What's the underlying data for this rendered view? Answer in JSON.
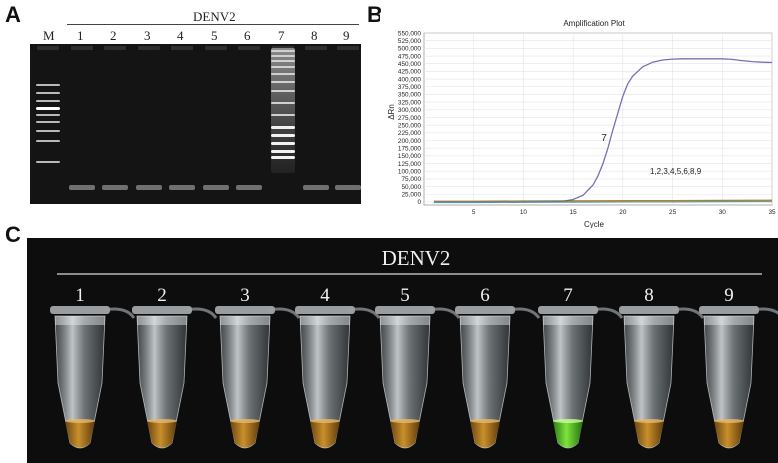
{
  "panel_a": {
    "label": "A",
    "header": "DENV2",
    "lanes": [
      "M",
      "1",
      "2",
      "3",
      "4",
      "5",
      "6",
      "7",
      "8",
      "9"
    ]
  },
  "panel_b": {
    "label": "B",
    "title": "Amplification Plot",
    "xlabel": "Cycle",
    "ylabel": "ΔRn",
    "positive_label": "7",
    "negative_label": "1,2,3,4,5,6,8,9"
  },
  "panel_c": {
    "label": "C",
    "header": "DENV2",
    "tubes": [
      "1",
      "2",
      "3",
      "4",
      "5",
      "6",
      "7",
      "8",
      "9"
    ],
    "colors": {
      "negative": "#b07a1e",
      "positive": "#4fc21e"
    }
  },
  "chart_data": {
    "type": "line",
    "title": "Amplification Plot",
    "xlabel": "Cycle",
    "ylabel": "ΔRn",
    "xlim": [
      0,
      35
    ],
    "ylim": [
      -10000,
      550000
    ],
    "x_ticks": [
      5,
      10,
      15,
      20,
      25,
      30,
      35
    ],
    "y_ticks": [
      0,
      25000,
      50000,
      75000,
      100000,
      125000,
      150000,
      175000,
      200000,
      225000,
      250000,
      275000,
      300000,
      325000,
      350000,
      375000,
      400000,
      425000,
      450000,
      475000,
      500000,
      525000,
      550000
    ],
    "y_tick_labels": [
      "0",
      "25,000",
      "50,000",
      "75,000",
      "100,000",
      "125,000",
      "150,000",
      "175,000",
      "200,000",
      "225,000",
      "250,000",
      "275,000",
      "300,000",
      "325,000",
      "350,000",
      "375,000",
      "400,000",
      "425,000",
      "450,000",
      "475,000",
      "500,000",
      "525,000",
      "550,000"
    ],
    "grid": true,
    "series": [
      {
        "name": "7",
        "color": "#7b6fb3",
        "x": [
          1,
          5,
          10,
          14,
          15,
          16,
          17,
          17.5,
          18,
          18.5,
          19,
          19.5,
          20,
          20.5,
          21,
          22,
          23,
          24,
          25,
          26,
          28,
          30,
          31,
          32,
          33,
          34,
          35
        ],
        "y": [
          0,
          0,
          0,
          2000,
          8000,
          22000,
          55000,
          85000,
          125000,
          175000,
          235000,
          290000,
          345000,
          385000,
          410000,
          440000,
          455000,
          462000,
          465000,
          466000,
          466000,
          466000,
          464000,
          460000,
          457000,
          455000,
          454000
        ]
      },
      {
        "name": "1,2,3,4,5,6,8,9",
        "color": "#e0a020",
        "x": [
          1,
          5,
          10,
          15,
          20,
          25,
          30,
          35
        ],
        "y": [
          0,
          0,
          1000,
          1500,
          2000,
          2500,
          3000,
          3500
        ]
      }
    ]
  }
}
